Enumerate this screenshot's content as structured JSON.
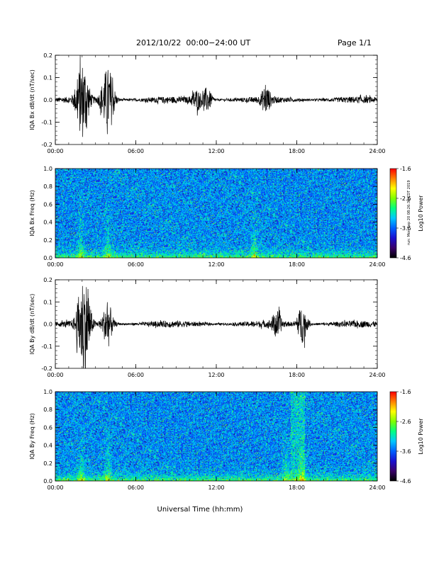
{
  "header": {
    "title": "2012/10/22  00:00−24:00 UT",
    "page": "Page 1/1"
  },
  "footer": {
    "stamp": "run: Mon Sep 20 08:26:36 CDT 2019"
  },
  "colors": {
    "trace": "#000000",
    "colormap": [
      "#000000",
      "#3a006a",
      "#1a10d0",
      "#0060ff",
      "#00c8ff",
      "#00ff80",
      "#80ff00",
      "#ffff00",
      "#ff8000",
      "#ff0000"
    ]
  },
  "chart_data": [
    {
      "type": "line",
      "ylabel": "IQA Bx dB/dt (nT/sec)",
      "xlabel": "",
      "xticks": [
        "00:00",
        "06:00",
        "12:00",
        "18:00",
        "24:00"
      ],
      "yticks": [
        "0.2",
        "0.1",
        "0.0",
        "-0.1",
        "-0.2"
      ],
      "xlim": [
        0,
        24
      ],
      "ylim": [
        -0.2,
        0.2
      ],
      "bursts": [
        {
          "t": 1.8,
          "amp": 0.1
        },
        {
          "t": 2.2,
          "amp": 0.12
        },
        {
          "t": 3.7,
          "amp": 0.09
        },
        {
          "t": 4.1,
          "amp": 0.1
        },
        {
          "t": 10.5,
          "amp": 0.04
        },
        {
          "t": 11.3,
          "amp": 0.05
        },
        {
          "t": 15.7,
          "amp": 0.05
        }
      ]
    },
    {
      "type": "heatmap",
      "ylabel": "IQA Bx Freq (Hz)",
      "xlabel": "",
      "xticks": [
        "00:00",
        "06:00",
        "12:00",
        "18:00",
        "24:00"
      ],
      "yticks": [
        "1.0",
        "0.8",
        "0.6",
        "0.4",
        "0.2",
        "0.0"
      ],
      "xlim": [
        0,
        24
      ],
      "ylim": [
        0,
        1.0
      ],
      "colorbar": {
        "label": "Log10 Power",
        "ticks": [
          "-1.6",
          "-2.6",
          "-3.6",
          "-4.6"
        ],
        "range": [
          -4.6,
          -1.6
        ]
      }
    },
    {
      "type": "line",
      "ylabel": "IQA By dB/dt (nT/sec)",
      "xlabel": "",
      "xticks": [
        "00:00",
        "06:00",
        "12:00",
        "18:00",
        "24:00"
      ],
      "yticks": [
        "0.2",
        "0.1",
        "0.0",
        "-0.1",
        "-0.2"
      ],
      "xlim": [
        0,
        24
      ],
      "ylim": [
        -0.2,
        0.2
      ],
      "bursts": [
        {
          "t": 1.9,
          "amp": 0.13
        },
        {
          "t": 2.3,
          "amp": 0.15
        },
        {
          "t": 3.9,
          "amp": 0.1
        },
        {
          "t": 16.5,
          "amp": 0.05
        },
        {
          "t": 18.4,
          "amp": 0.08
        }
      ]
    },
    {
      "type": "heatmap",
      "ylabel": "IQA By Freq (Hz)",
      "xlabel": "Universal Time (hh:mm)",
      "xticks": [
        "00:00",
        "06:00",
        "12:00",
        "18:00",
        "24:00"
      ],
      "yticks": [
        "1.0",
        "0.8",
        "0.6",
        "0.4",
        "0.2",
        "0.0"
      ],
      "xlim": [
        0,
        24
      ],
      "ylim": [
        0,
        1.0
      ],
      "colorbar": {
        "label": "Log10 Power",
        "ticks": [
          "-1.6",
          "-2.6",
          "-3.6",
          "-4.6"
        ],
        "range": [
          -4.6,
          -1.6
        ]
      }
    }
  ]
}
